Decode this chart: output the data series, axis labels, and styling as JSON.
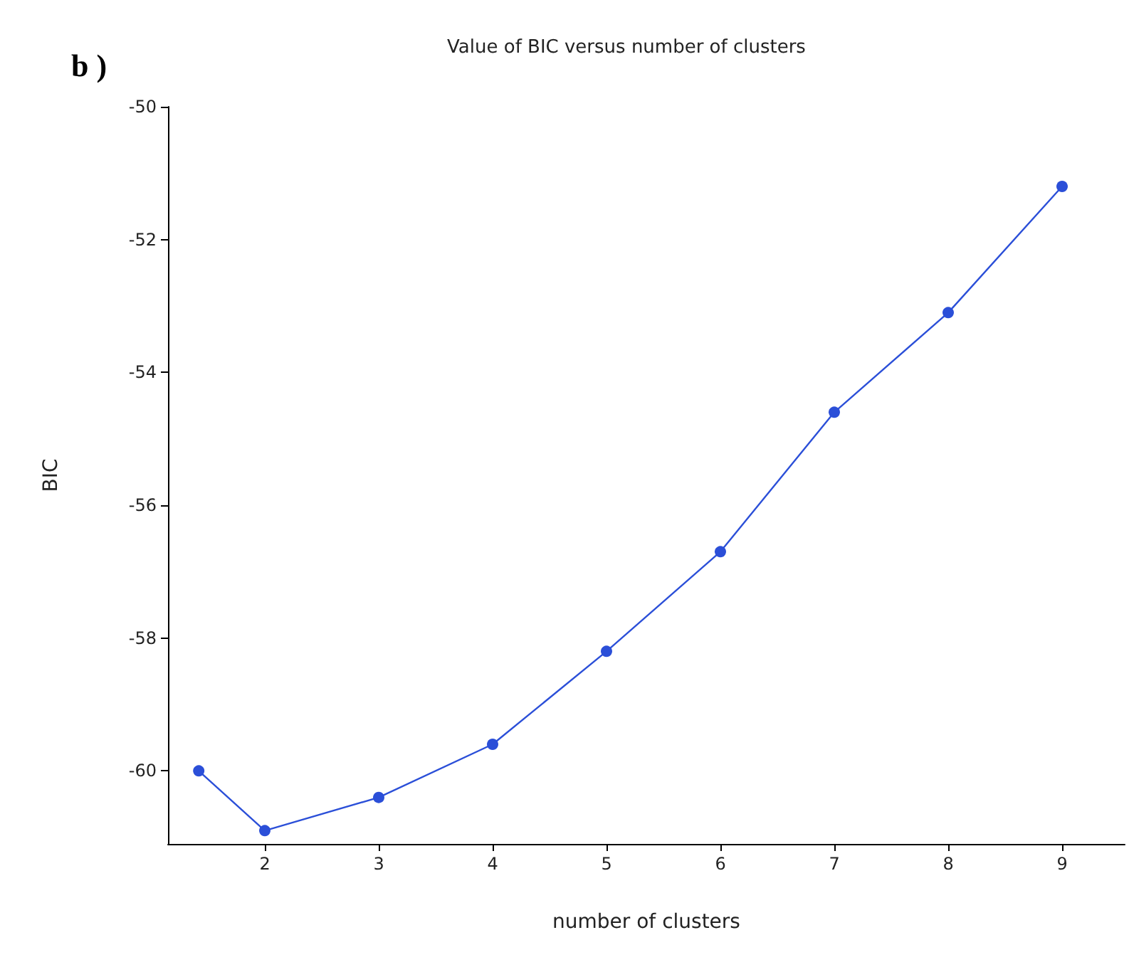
{
  "chart_data": {
    "type": "line",
    "title": "Value of BIC versus number of clusters",
    "xlabel": "number of clusters",
    "ylabel": "BIC",
    "annotations": [
      "b )"
    ],
    "x": [
      1.42,
      2,
      3,
      4,
      5,
      6,
      7,
      8,
      9
    ],
    "series": [
      {
        "color": "#2b4fd8",
        "values": [
          -60.0,
          -60.9,
          -60.4,
          -59.6,
          -58.2,
          -56.7,
          -54.6,
          -53.1,
          -51.2
        ]
      }
    ],
    "xlim": [
      1.15,
      9.55
    ],
    "xticks": [
      2,
      3,
      4,
      5,
      6,
      7,
      8,
      9
    ],
    "ylim": [
      -61.1,
      -50
    ],
    "yticks": [
      -60,
      -58,
      -56,
      -54,
      -52,
      -50
    ],
    "grid": false,
    "marker": "circle",
    "line_style": "solid"
  }
}
